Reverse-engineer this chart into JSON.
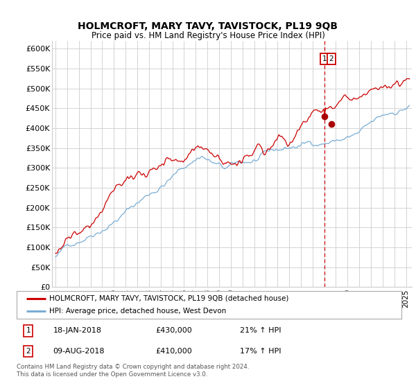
{
  "title": "HOLMCROFT, MARY TAVY, TAVISTOCK, PL19 9QB",
  "subtitle": "Price paid vs. HM Land Registry's House Price Index (HPI)",
  "ylabel_ticks": [
    "£0",
    "£50K",
    "£100K",
    "£150K",
    "£200K",
    "£250K",
    "£300K",
    "£350K",
    "£400K",
    "£450K",
    "£500K",
    "£550K",
    "£600K"
  ],
  "ylim": [
    0,
    620000
  ],
  "xlim_start": 1994.7,
  "xlim_end": 2025.5,
  "legend1": "HOLMCROFT, MARY TAVY, TAVISTOCK, PL19 9QB (detached house)",
  "legend2": "HPI: Average price, detached house, West Devon",
  "sale1_date": "18-JAN-2018",
  "sale1_price": "£430,000",
  "sale1_hpi": "21% ↑ HPI",
  "sale2_date": "09-AUG-2018",
  "sale2_price": "£410,000",
  "sale2_hpi": "17% ↑ HPI",
  "sale1_x": 2018.05,
  "sale1_y": 430000,
  "sale2_x": 2018.6,
  "sale2_y": 410000,
  "vline_x": 2018.05,
  "footer": "Contains HM Land Registry data © Crown copyright and database right 2024.\nThis data is licensed under the Open Government Licence v3.0.",
  "line1_color": "#cc0000",
  "line2_color": "#7aadd4",
  "vline_color": "#cc0000",
  "background_color": "#ffffff",
  "grid_color": "#cccccc",
  "marker_color": "#aa0000"
}
